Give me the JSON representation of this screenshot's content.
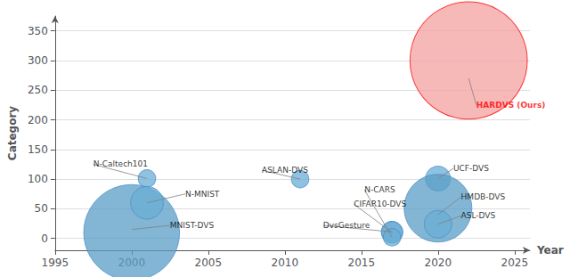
{
  "chart_data": {
    "type": "scatter",
    "xlabel": "Year",
    "ylabel": "Category",
    "xlim": [
      1995,
      2026
    ],
    "ylim": [
      -20,
      375
    ],
    "xticks": [
      1995,
      2000,
      2005,
      2010,
      2015,
      2020,
      2025
    ],
    "yticks": [
      0,
      50,
      100,
      150,
      200,
      250,
      300,
      350
    ],
    "grid": "y",
    "series": [
      {
        "name": "N-Caltech101",
        "x": [
          2001
        ],
        "values": [
          101
        ],
        "size": [
          200
        ],
        "color": "#6aaed6",
        "edge_color": "#4a8ec6"
      },
      {
        "name": "MNIST-DVS",
        "x": [
          2000
        ],
        "values": [
          10
        ],
        "size": [
          6000
        ],
        "color": "#5a9ec6",
        "edge_color": "#4a8ec6"
      },
      {
        "name": "N-MNIST",
        "x": [
          2001
        ],
        "values": [
          60
        ],
        "size": [
          700
        ],
        "color": "#6aaed6",
        "edge_color": "#4a8ec6"
      },
      {
        "name": "ASLAN-DVS",
        "x": [
          2011
        ],
        "values": [
          100
        ],
        "size": [
          200
        ],
        "color": "#6aaed6",
        "edge_color": "#4a8ec6"
      },
      {
        "name": "DvsGesture",
        "x": [
          2017
        ],
        "values": [
          11
        ],
        "size": [
          300
        ],
        "color": "#6aaed6",
        "edge_color": "#4a8ec6"
      },
      {
        "name": "CIFAR10-DVS",
        "x": [
          2017
        ],
        "values": [
          10
        ],
        "size": [
          300
        ],
        "color": "#6aaed6",
        "edge_color": "#4a8ec6"
      },
      {
        "name": "N-CARS",
        "x": [
          2017
        ],
        "values": [
          2
        ],
        "size": [
          200
        ],
        "color": "#6aaed6",
        "edge_color": "#4a8ec6"
      },
      {
        "name": "UCF-DVS",
        "x": [
          2020
        ],
        "values": [
          101
        ],
        "size": [
          400
        ],
        "color": "#6aaed6",
        "edge_color": "#4a8ec6"
      },
      {
        "name": "HMDB-DVS",
        "x": [
          2020
        ],
        "values": [
          51
        ],
        "size": [
          3000
        ],
        "color": "#5a9ec6",
        "edge_color": "#4a8ec6"
      },
      {
        "name": "ASL-DVS",
        "x": [
          2020
        ],
        "values": [
          24
        ],
        "size": [
          500
        ],
        "color": "#6aaed6",
        "edge_color": "#4a8ec6"
      },
      {
        "name": "HARDVS (Ours)",
        "x": [
          2022
        ],
        "values": [
          300
        ],
        "size": [
          9000
        ],
        "color": "#f4a0a0",
        "edge_color": "red"
      }
    ],
    "annotations": [
      {
        "text": "N-Caltech101",
        "x": 2001,
        "y": 101,
        "text_x": 1997.5,
        "text_y": 125,
        "color": "black"
      },
      {
        "text": "MNIST-DVS",
        "x": 2000,
        "y": 15,
        "text_x": 2002.5,
        "text_y": 22,
        "color": "black"
      },
      {
        "text": "N-MNIST",
        "x": 2001,
        "y": 60,
        "text_x": 2003.5,
        "text_y": 75,
        "color": "black"
      },
      {
        "text": "ASLAN-DVS",
        "x": 2011,
        "y": 100,
        "text_x": 2008.5,
        "text_y": 115,
        "color": "black"
      },
      {
        "text": "DvsGesture",
        "x": 2017,
        "y": 11,
        "text_x": 2012.5,
        "text_y": 22,
        "color": "black"
      },
      {
        "text": "CIFAR10-DVS",
        "x": 2017,
        "y": 10,
        "text_x": 2014.5,
        "text_y": 58,
        "color": "black"
      },
      {
        "text": "N-CARS",
        "x": 2017,
        "y": 2,
        "text_x": 2015.2,
        "text_y": 82,
        "color": "black"
      },
      {
        "text": "UCF-DVS",
        "x": 2020,
        "y": 101,
        "text_x": 2021.0,
        "text_y": 118,
        "color": "black"
      },
      {
        "text": "HMDB-DVS",
        "x": 2020,
        "y": 40,
        "text_x": 2021.5,
        "text_y": 70,
        "color": "black"
      },
      {
        "text": "ASL-DVS",
        "x": 2020,
        "y": 24,
        "text_x": 2021.5,
        "text_y": 38,
        "color": "black"
      },
      {
        "text": "HARDVS (Ours)",
        "x": 2022,
        "y": 270,
        "text_x": 2022.5,
        "text_y": 225,
        "color": "red",
        "bold": true
      }
    ]
  }
}
